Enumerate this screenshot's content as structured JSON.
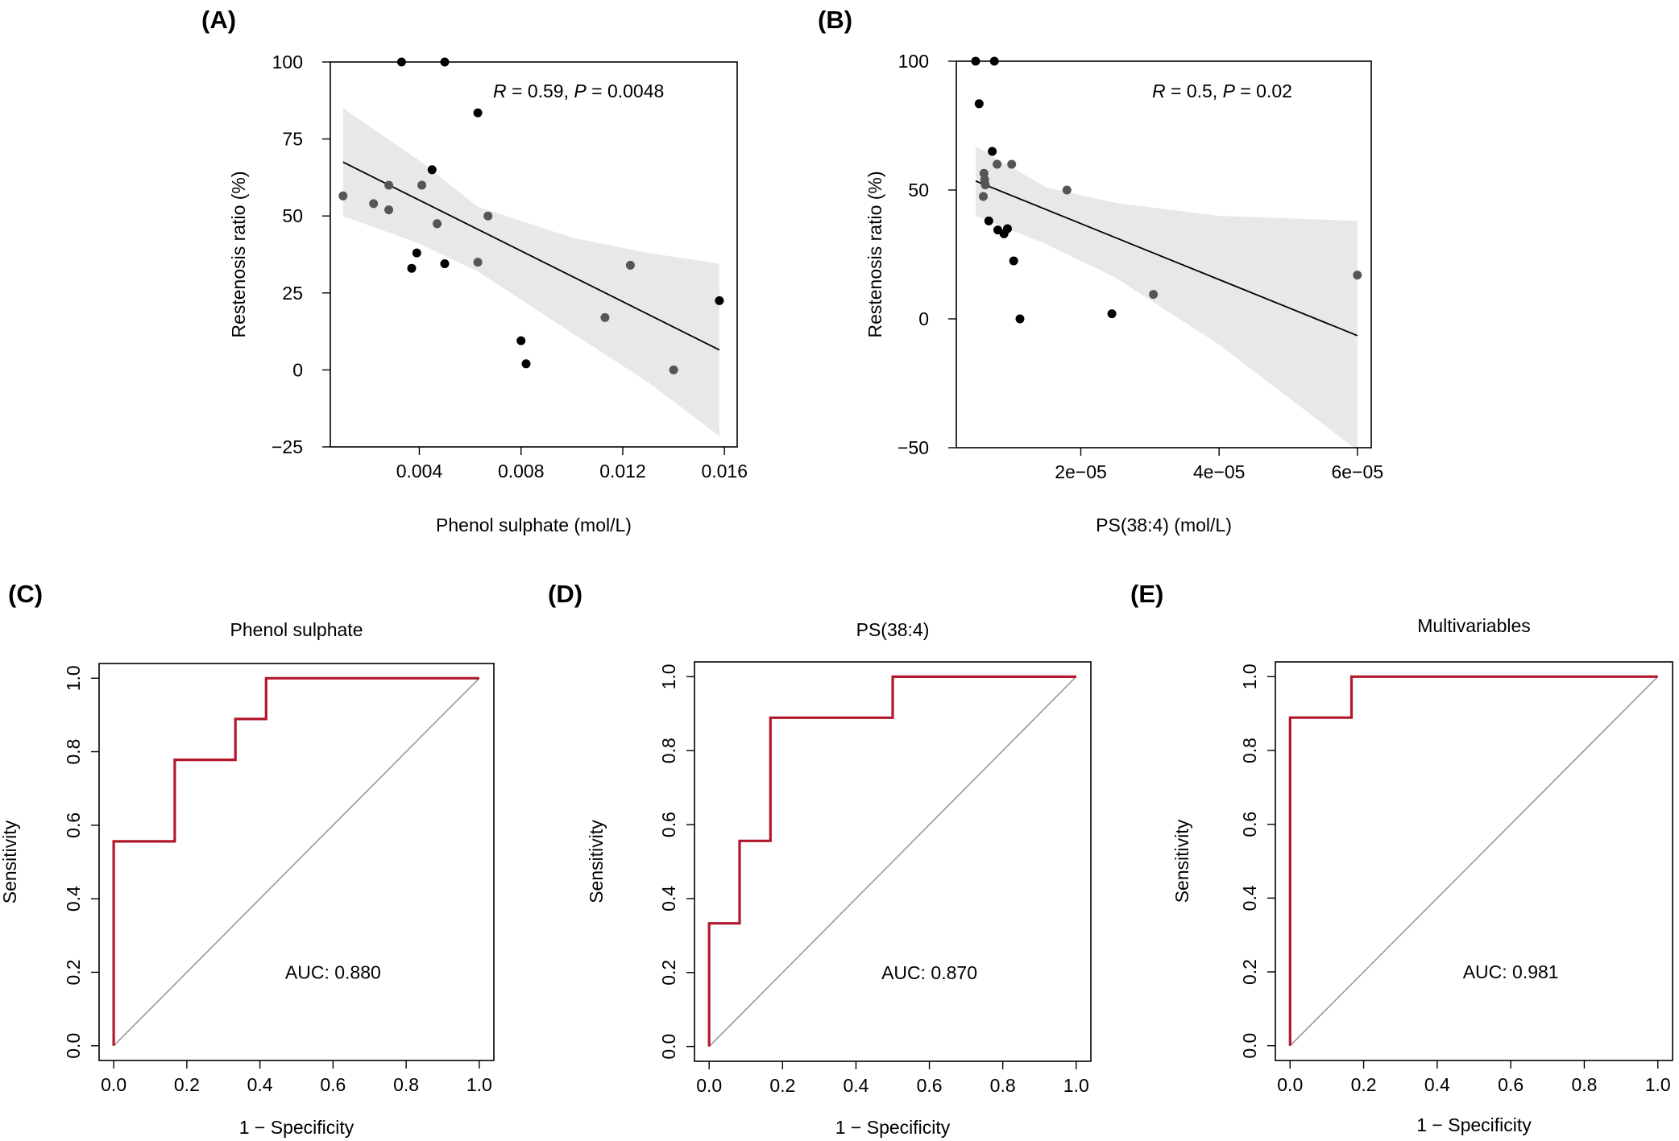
{
  "chart_data": [
    {
      "panel": "(A)",
      "type": "scatter",
      "xlabel": "Phenol sulphate (mol/L)",
      "ylabel": "Restenosis ratio (%)",
      "xlim": [
        0.0005,
        0.0165
      ],
      "ylim": [
        -25,
        100
      ],
      "xticks": [
        0.004,
        0.008,
        0.012,
        0.016
      ],
      "xtick_labels": [
        "0.004",
        "0.008",
        "0.012",
        "0.016"
      ],
      "yticks": [
        -25,
        0,
        25,
        50,
        75,
        100
      ],
      "ytick_labels": [
        "−25",
        "0",
        "25",
        "50",
        "75",
        "100"
      ],
      "annotation": {
        "r_label": "R",
        "r_value": " = 0.59, ",
        "p_label": "P",
        "p_value": " = 0.0048"
      },
      "points": [
        {
          "x": 0.0033,
          "y": 100,
          "c": "#000000"
        },
        {
          "x": 0.005,
          "y": 100,
          "c": "#000000"
        },
        {
          "x": 0.0063,
          "y": 83.5,
          "c": "#000000"
        },
        {
          "x": 0.0045,
          "y": 65,
          "c": "#000000"
        },
        {
          "x": 0.001,
          "y": 56.5,
          "c": "#555555"
        },
        {
          "x": 0.0028,
          "y": 60,
          "c": "#555555"
        },
        {
          "x": 0.0041,
          "y": 60,
          "c": "#555555"
        },
        {
          "x": 0.0022,
          "y": 54,
          "c": "#555555"
        },
        {
          "x": 0.0028,
          "y": 52,
          "c": "#555555"
        },
        {
          "x": 0.0067,
          "y": 50,
          "c": "#555555"
        },
        {
          "x": 0.0047,
          "y": 47.5,
          "c": "#555555"
        },
        {
          "x": 0.0039,
          "y": 38,
          "c": "#000000"
        },
        {
          "x": 0.005,
          "y": 34.5,
          "c": "#000000"
        },
        {
          "x": 0.0063,
          "y": 35,
          "c": "#555555"
        },
        {
          "x": 0.0123,
          "y": 34,
          "c": "#555555"
        },
        {
          "x": 0.0037,
          "y": 33,
          "c": "#000000"
        },
        {
          "x": 0.0158,
          "y": 22.5,
          "c": "#000000"
        },
        {
          "x": 0.0113,
          "y": 17,
          "c": "#555555"
        },
        {
          "x": 0.008,
          "y": 9.5,
          "c": "#000000"
        },
        {
          "x": 0.0082,
          "y": 2,
          "c": "#000000"
        },
        {
          "x": 0.014,
          "y": 0,
          "c": "#555555"
        }
      ],
      "fit": {
        "x": [
          0.001,
          0.0158
        ],
        "y": [
          67.5,
          6.5
        ]
      },
      "ci_band": {
        "x": [
          0.001,
          0.004,
          0.0063,
          0.01,
          0.013,
          0.0158
        ],
        "upper": [
          85,
          68,
          53,
          43,
          38,
          34.5
        ],
        "lower": [
          50,
          41,
          32,
          12,
          -4,
          -21.5
        ]
      }
    },
    {
      "panel": "(B)",
      "type": "scatter",
      "xlabel": "PS(38:4) (mol/L)",
      "ylabel": "Restenosis ratio (%)",
      "xlim": [
        2e-06,
        6.2e-05
      ],
      "ylim": [
        -50,
        100
      ],
      "xticks": [
        2e-05,
        4e-05,
        6e-05
      ],
      "xtick_labels": [
        "2e−05",
        "4e−05",
        "6e−05"
      ],
      "yticks": [
        -50,
        0,
        50,
        100
      ],
      "ytick_labels": [
        "−50",
        "0",
        "50",
        "100"
      ],
      "annotation": {
        "r_label": "R",
        "r_value": " = 0.5, ",
        "p_label": "P",
        "p_value": " = 0.02"
      },
      "points": [
        {
          "x": 4.8e-06,
          "y": 100,
          "c": "#000000"
        },
        {
          "x": 7.5e-06,
          "y": 100,
          "c": "#000000"
        },
        {
          "x": 5.3e-06,
          "y": 83.5,
          "c": "#000000"
        },
        {
          "x": 7.2e-06,
          "y": 65,
          "c": "#000000"
        },
        {
          "x": 7.9e-06,
          "y": 60,
          "c": "#555555"
        },
        {
          "x": 1e-05,
          "y": 60,
          "c": "#555555"
        },
        {
          "x": 6e-06,
          "y": 56.5,
          "c": "#555555"
        },
        {
          "x": 6.1e-06,
          "y": 54,
          "c": "#555555"
        },
        {
          "x": 6.2e-06,
          "y": 52,
          "c": "#555555"
        },
        {
          "x": 1.8e-05,
          "y": 50,
          "c": "#555555"
        },
        {
          "x": 5.9e-06,
          "y": 47.5,
          "c": "#555555"
        },
        {
          "x": 6.7e-06,
          "y": 38,
          "c": "#000000"
        },
        {
          "x": 9.4e-06,
          "y": 35,
          "c": "#000000"
        },
        {
          "x": 8e-06,
          "y": 34.5,
          "c": "#000000"
        },
        {
          "x": 8.9e-06,
          "y": 33,
          "c": "#000000"
        },
        {
          "x": 1.03e-05,
          "y": 22.5,
          "c": "#000000"
        },
        {
          "x": 6e-05,
          "y": 17,
          "c": "#555555"
        },
        {
          "x": 3.05e-05,
          "y": 9.5,
          "c": "#555555"
        },
        {
          "x": 2.45e-05,
          "y": 2,
          "c": "#000000"
        },
        {
          "x": 1.12e-05,
          "y": 0,
          "c": "#000000"
        }
      ],
      "fit": {
        "x": [
          4.8e-06,
          6e-05
        ],
        "y": [
          53.5,
          -6.5
        ]
      },
      "ci_band": {
        "x": [
          4.8e-06,
          1.5e-05,
          2.5e-05,
          4e-05,
          6e-05
        ],
        "upper": [
          67,
          51,
          45,
          40,
          38
        ],
        "lower": [
          40,
          29,
          16,
          -10,
          -51
        ]
      }
    },
    {
      "panel": "(C)",
      "type": "line",
      "title": "Phenol sulphate",
      "xlabel": "1 − Specificity",
      "ylabel": "Sensitivity",
      "xlim": [
        -0.04,
        1.04
      ],
      "ylim": [
        -0.04,
        1.04
      ],
      "xticks": [
        0,
        0.2,
        0.4,
        0.6,
        0.8,
        1.0
      ],
      "xtick_labels": [
        "0.0",
        "0.2",
        "0.4",
        "0.6",
        "0.8",
        "1.0"
      ],
      "yticks": [
        0,
        0.2,
        0.4,
        0.6,
        0.8,
        1.0
      ],
      "ytick_labels": [
        "0.0",
        "0.2",
        "0.4",
        "0.6",
        "0.8",
        "1.0"
      ],
      "auc_text": "AUC: 0.880",
      "series": [
        {
          "x": [
            0,
            0,
            0.167,
            0.167,
            0.333,
            0.333,
            0.417,
            0.417,
            1.0
          ],
          "y": [
            0,
            0.556,
            0.556,
            0.778,
            0.778,
            0.889,
            0.889,
            1.0,
            1.0
          ]
        }
      ]
    },
    {
      "panel": "(D)",
      "type": "line",
      "title": "PS(38:4)",
      "xlabel": "1 − Specificity",
      "ylabel": "Sensitivity",
      "xlim": [
        -0.04,
        1.04
      ],
      "ylim": [
        -0.04,
        1.04
      ],
      "xticks": [
        0,
        0.2,
        0.4,
        0.6,
        0.8,
        1.0
      ],
      "xtick_labels": [
        "0.0",
        "0.2",
        "0.4",
        "0.6",
        "0.8",
        "1.0"
      ],
      "yticks": [
        0,
        0.2,
        0.4,
        0.6,
        0.8,
        1.0
      ],
      "ytick_labels": [
        "0.0",
        "0.2",
        "0.4",
        "0.6",
        "0.8",
        "1.0"
      ],
      "auc_text": "AUC: 0.870",
      "series": [
        {
          "x": [
            0,
            0,
            0.083,
            0.083,
            0.167,
            0.167,
            0.5,
            0.5,
            1.0
          ],
          "y": [
            0,
            0.333,
            0.333,
            0.556,
            0.556,
            0.889,
            0.889,
            1.0,
            1.0
          ]
        }
      ]
    },
    {
      "panel": "(E)",
      "type": "line",
      "title": "Multivariables",
      "xlabel": "1 − Specificity",
      "ylabel": "Sensitivity",
      "xlim": [
        -0.04,
        1.04
      ],
      "ylim": [
        -0.04,
        1.04
      ],
      "xticks": [
        0,
        0.2,
        0.4,
        0.6,
        0.8,
        1.0
      ],
      "xtick_labels": [
        "0.0",
        "0.2",
        "0.4",
        "0.6",
        "0.8",
        "1.0"
      ],
      "yticks": [
        0,
        0.2,
        0.4,
        0.6,
        0.8,
        1.0
      ],
      "ytick_labels": [
        "0.0",
        "0.2",
        "0.4",
        "0.6",
        "0.8",
        "1.0"
      ],
      "auc_text": "AUC: 0.981",
      "series": [
        {
          "x": [
            0,
            0,
            0.167,
            0.167,
            1.0
          ],
          "y": [
            0,
            0.889,
            0.889,
            1.0,
            1.0
          ]
        }
      ]
    }
  ],
  "colors": {
    "roc_curve": "#b2182b",
    "diagonal": "#999999",
    "ci_band": "#e8e8e8",
    "fit_line": "#000000"
  }
}
